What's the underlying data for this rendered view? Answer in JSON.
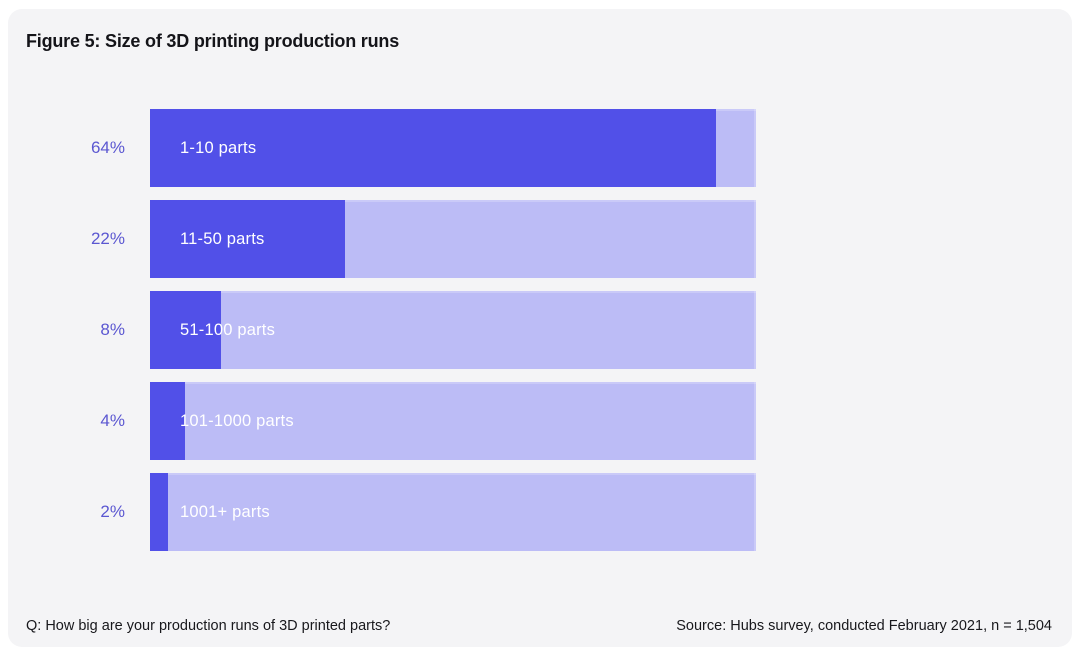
{
  "title": "Figure 5: Size of 3D printing production runs",
  "footer": {
    "question": "Q: How big are your production runs of 3D printed parts?",
    "source": "Source: Hubs survey, conducted February 2021, n = 1,504"
  },
  "colors": {
    "card_bg": "#f4f4f6",
    "title_text": "#141419",
    "footer_text": "#18181c",
    "bar_fill": "#5150e8",
    "bar_track": "#bcbcf6",
    "percent_label": "#5b57d1",
    "bar_label_text": "#ffffff"
  },
  "chart_data": {
    "type": "bar",
    "orientation": "horizontal",
    "title": "Figure 5: Size of 3D printing production runs",
    "categories": [
      "1-10 parts",
      "11-50 parts",
      "51-100 parts",
      "101-1000 parts",
      "1001+ parts"
    ],
    "values": [
      64,
      22,
      8,
      4,
      2
    ],
    "value_labels": [
      "64%",
      "22%",
      "8%",
      "4%",
      "2%"
    ],
    "xlabel": "",
    "ylabel": "",
    "xlim": [
      0,
      68.5
    ],
    "grid": false,
    "legend": false,
    "annotations": {
      "question": "Q: How big are your production runs of 3D printed parts?",
      "source": "Source: Hubs survey, conducted February 2021, n = 1,504"
    }
  }
}
